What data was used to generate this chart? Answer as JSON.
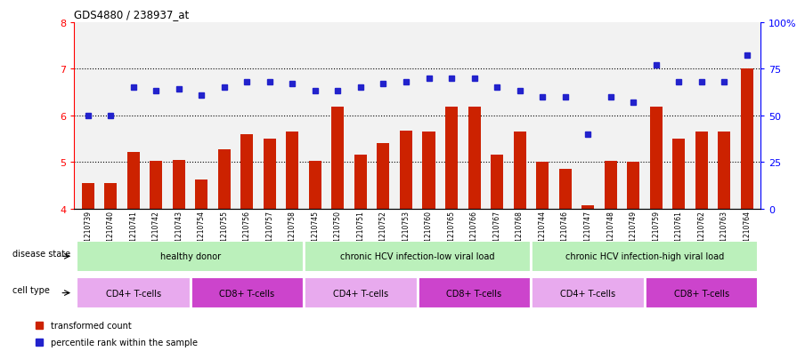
{
  "title": "GDS4880 / 238937_at",
  "samples": [
    "GSM1210739",
    "GSM1210740",
    "GSM1210741",
    "GSM1210742",
    "GSM1210743",
    "GSM1210754",
    "GSM1210755",
    "GSM1210756",
    "GSM1210757",
    "GSM1210758",
    "GSM1210745",
    "GSM1210750",
    "GSM1210751",
    "GSM1210752",
    "GSM1210753",
    "GSM1210760",
    "GSM1210765",
    "GSM1210766",
    "GSM1210767",
    "GSM1210768",
    "GSM1210744",
    "GSM1210746",
    "GSM1210747",
    "GSM1210748",
    "GSM1210749",
    "GSM1210759",
    "GSM1210761",
    "GSM1210762",
    "GSM1210763",
    "GSM1210764"
  ],
  "bar_values": [
    4.55,
    4.55,
    5.22,
    5.02,
    5.05,
    4.62,
    5.28,
    5.6,
    5.5,
    5.65,
    5.02,
    6.18,
    5.15,
    5.4,
    5.68,
    5.65,
    6.18,
    6.18,
    5.15,
    5.65,
    5.0,
    4.85,
    4.08,
    5.02,
    5.0,
    6.18,
    5.5,
    5.65,
    5.65,
    7.0
  ],
  "percentile_values": [
    50,
    50,
    65,
    63,
    64,
    61,
    65,
    68,
    68,
    67,
    63,
    63,
    65,
    67,
    68,
    70,
    70,
    70,
    65,
    63,
    60,
    60,
    40,
    60,
    57,
    77,
    68,
    68,
    68,
    82
  ],
  "bar_color": "#cc2200",
  "dot_color": "#2222cc",
  "ylim_left": [
    4,
    8
  ],
  "ylim_right": [
    0,
    100
  ],
  "disease_groups": [
    {
      "label": "healthy donor",
      "start": 0,
      "end": 9,
      "color": "#bbf0bb"
    },
    {
      "label": "chronic HCV infection-low viral load",
      "start": 10,
      "end": 19,
      "color": "#bbf0bb"
    },
    {
      "label": "chronic HCV infection-high viral load",
      "start": 20,
      "end": 29,
      "color": "#bbf0bb"
    }
  ],
  "cell_type_groups": [
    {
      "label": "CD4+ T-cells",
      "start": 0,
      "end": 4,
      "color": "#e8aaee"
    },
    {
      "label": "CD8+ T-cells",
      "start": 5,
      "end": 9,
      "color": "#cc44cc"
    },
    {
      "label": "CD4+ T-cells",
      "start": 10,
      "end": 14,
      "color": "#e8aaee"
    },
    {
      "label": "CD8+ T-cells",
      "start": 15,
      "end": 19,
      "color": "#cc44cc"
    },
    {
      "label": "CD4+ T-cells",
      "start": 20,
      "end": 24,
      "color": "#e8aaee"
    },
    {
      "label": "CD8+ T-cells",
      "start": 25,
      "end": 29,
      "color": "#cc44cc"
    }
  ],
  "disease_label": "disease state",
  "celltype_label": "cell type",
  "legend_bar": "transformed count",
  "legend_dot": "percentile rank within the sample"
}
